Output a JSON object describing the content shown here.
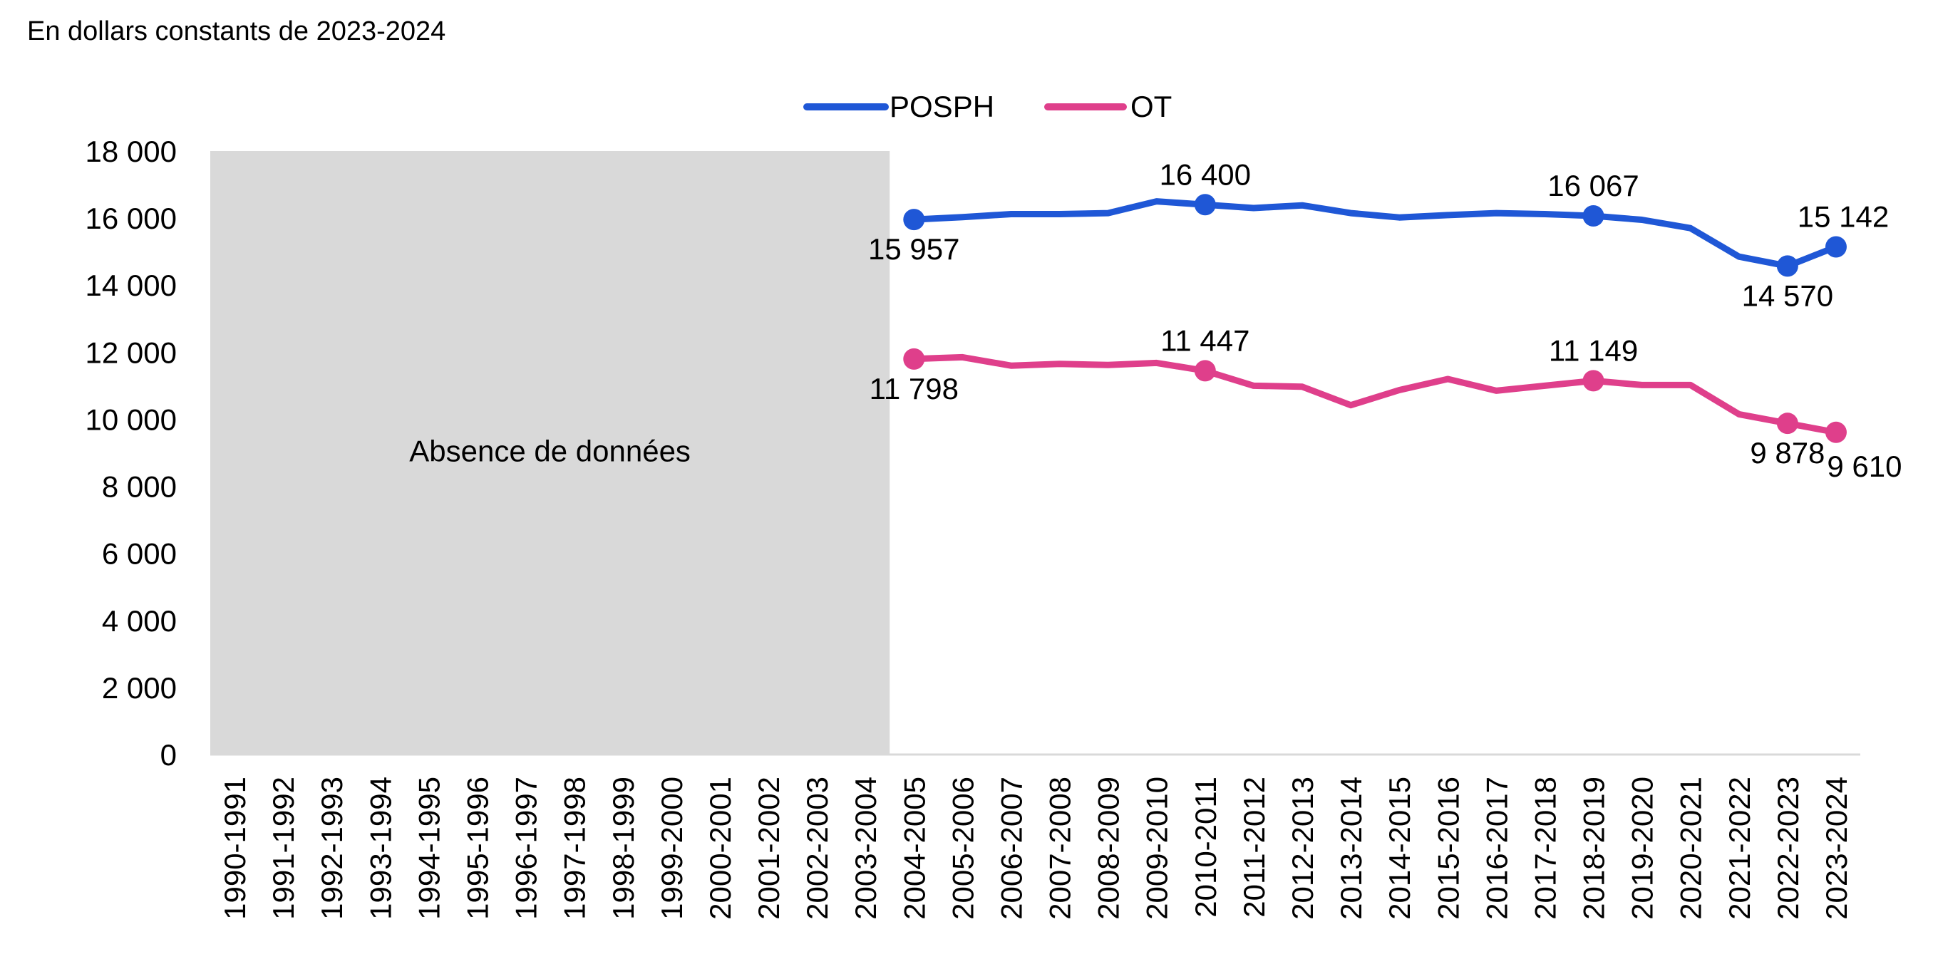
{
  "chart_data": {
    "type": "line",
    "subtitle": "En dollars constants de 2023-2024",
    "title": "",
    "xlabel": "",
    "ylabel": "",
    "categories": [
      "1990-1991",
      "1991-1992",
      "1992-1993",
      "1993-1994",
      "1994-1995",
      "1995-1996",
      "1996-1997",
      "1997-1998",
      "1998-1999",
      "1999-2000",
      "2000-2001",
      "2001-2002",
      "2002-2003",
      "2003-2004",
      "2004-2005",
      "2005-2006",
      "2006-2007",
      "2007-2008",
      "2008-2009",
      "2009-2010",
      "2010-2011",
      "2011-2012",
      "2012-2013",
      "2013-2014",
      "2014-2015",
      "2015-2016",
      "2016-2017",
      "2017-2018",
      "2018-2019",
      "2019-2020",
      "2020-2021",
      "2021-2022",
      "2022-2023",
      "2023-2024"
    ],
    "ylim": [
      0,
      18000
    ],
    "yticks": [
      0,
      2000,
      4000,
      6000,
      8000,
      10000,
      12000,
      14000,
      16000,
      18000
    ],
    "ytick_labels": [
      "0",
      "2 000",
      "4 000",
      "6 000",
      "8 000",
      "10 000",
      "12 000",
      "14 000",
      "16 000",
      "18 000"
    ],
    "grid": false,
    "legend_position": "top-center",
    "shaded_region": {
      "label": "Absence de données",
      "from_category": "1990-1991",
      "to_category": "2003-2004",
      "color": "#d9d9d9"
    },
    "series": [
      {
        "name": "POSPH",
        "color": "#1f57d6",
        "values": [
          null,
          null,
          null,
          null,
          null,
          null,
          null,
          null,
          null,
          null,
          null,
          null,
          null,
          null,
          15957,
          16030,
          16120,
          16120,
          16150,
          16500,
          16400,
          16300,
          16380,
          16150,
          16020,
          16090,
          16150,
          16120,
          16067,
          15950,
          15700,
          14850,
          14570,
          15142
        ],
        "labels": [
          {
            "category": "2004-2005",
            "text": "15 957",
            "position": "below"
          },
          {
            "category": "2010-2011",
            "text": "16 400",
            "position": "above"
          },
          {
            "category": "2018-2019",
            "text": "16 067",
            "position": "above"
          },
          {
            "category": "2022-2023",
            "text": "14 570",
            "position": "below"
          },
          {
            "category": "2023-2024",
            "text": "15 142",
            "position": "above"
          }
        ]
      },
      {
        "name": "OT",
        "color": "#df3f8b",
        "values": [
          null,
          null,
          null,
          null,
          null,
          null,
          null,
          null,
          null,
          null,
          null,
          null,
          null,
          null,
          11798,
          11850,
          11600,
          11650,
          11620,
          11680,
          11447,
          11000,
          10970,
          10420,
          10870,
          11200,
          10850,
          11000,
          11149,
          11020,
          11020,
          10150,
          9878,
          9610
        ],
        "labels": [
          {
            "category": "2004-2005",
            "text": "11 798",
            "position": "below"
          },
          {
            "category": "2010-2011",
            "text": "11 447",
            "position": "above"
          },
          {
            "category": "2018-2019",
            "text": "11 149",
            "position": "above"
          },
          {
            "category": "2022-2023",
            "text": "9 878",
            "position": "below"
          },
          {
            "category": "2023-2024",
            "text": "9 610",
            "position": "below"
          }
        ]
      }
    ]
  }
}
